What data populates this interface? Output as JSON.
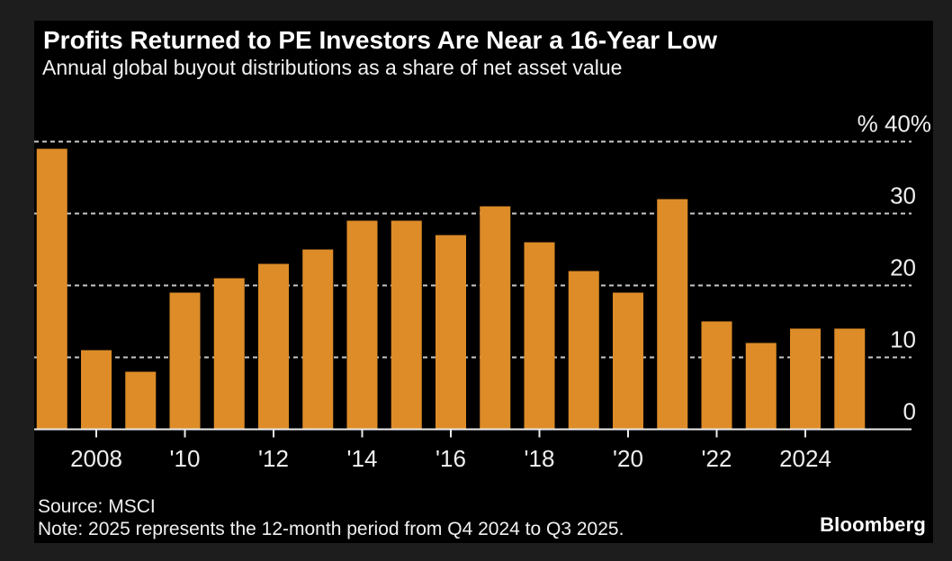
{
  "header": {
    "title": "Profits Returned to PE Investors Are Near a 16-Year Low",
    "subtitle": "Annual global buyout distributions as a share of net asset value"
  },
  "footer": {
    "source": "Source: MSCI",
    "note": "Note: 2025 represents the 12-month period from Q4 2024 to Q3 2025.",
    "brand": "Bloomberg"
  },
  "colors": {
    "page_background": "#1d1d1d",
    "panel_background": "#000000",
    "bar": "#dd8c28",
    "gridline": "#c9c9c9",
    "axis": "#ececec",
    "text": "#f0f0f0"
  },
  "chart_data": {
    "type": "bar",
    "title": "Profits Returned to PE Investors Are Near a 16-Year Low",
    "subtitle": "Annual global buyout distributions as a share of net asset value",
    "xlabel": "",
    "ylabel": "%",
    "ylim": [
      0,
      42
    ],
    "grid": "horizontal dashed, behind bars",
    "legend": "none",
    "bar_color": "#dd8c28",
    "y_axis_unit_prefix": "%",
    "categories": [
      "2007",
      "2008",
      "2009",
      "2010",
      "2011",
      "2012",
      "2013",
      "2014",
      "2015",
      "2016",
      "2017",
      "2018",
      "2019",
      "2020",
      "2021",
      "2022",
      "2023",
      "2024",
      "2025"
    ],
    "values": [
      39,
      11,
      8,
      19,
      21,
      23,
      25,
      29,
      29,
      27,
      31,
      26,
      22,
      19,
      32,
      15,
      12,
      14,
      14
    ],
    "y_ticks": [
      {
        "value": 40,
        "label": "40%"
      },
      {
        "value": 30,
        "label": "30"
      },
      {
        "value": 20,
        "label": "20"
      },
      {
        "value": 10,
        "label": "10"
      },
      {
        "value": 0,
        "label": "0"
      }
    ],
    "x_ticks": [
      {
        "year": 2008,
        "label": "2008"
      },
      {
        "year": 2010,
        "label": "'10"
      },
      {
        "year": 2012,
        "label": "'12"
      },
      {
        "year": 2014,
        "label": "'14"
      },
      {
        "year": 2016,
        "label": "'16"
      },
      {
        "year": 2018,
        "label": "'18"
      },
      {
        "year": 2020,
        "label": "'20"
      },
      {
        "year": 2022,
        "label": "'22"
      },
      {
        "year": 2024,
        "label": "2024"
      }
    ]
  }
}
